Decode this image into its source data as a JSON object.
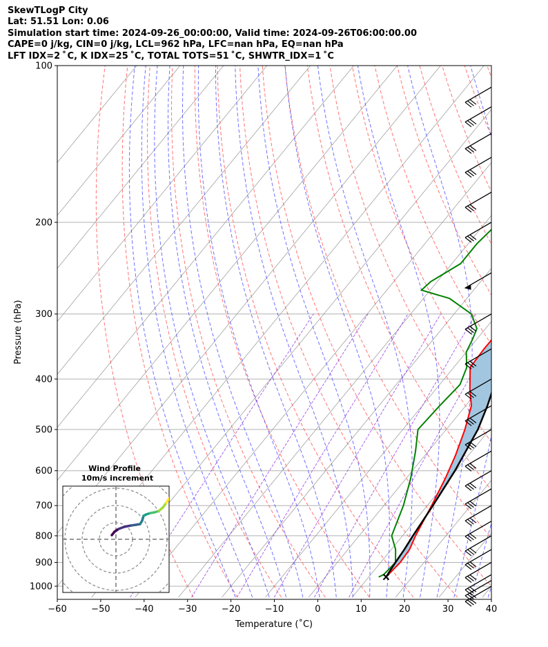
{
  "header": {
    "line1": "SkewTLogP City",
    "line2": "Lat: 51.51   Lon: 0.06",
    "line3": "Simulation start time: 2024-09-26_00:00:00, Valid time: 2024-09-26T06:00:00.00",
    "line4": "CAPE=0 j/kg, CIN=0 j/kg, LCL=962 hPa, LFC=nan hPa, EQ=nan hPa",
    "line5": "LFT IDX=2 ˚ C, K IDX=25 ˚C, TOTAL TOTS=51 ˚C, SHWTR_IDX=1 ˚C"
  },
  "inset": {
    "title_line1": "Wind Profile",
    "title_line2": "10m/s increment"
  },
  "chart_data": {
    "type": "line",
    "subtype": "skew-t log-p",
    "xlabel": "Temperature (˚C)",
    "ylabel": "Pressure (hPa)",
    "xlim": [
      -60,
      40
    ],
    "ylim": [
      1050,
      100
    ],
    "y_scale": "log",
    "grid": true,
    "x_ticks": [
      "−60",
      "−50",
      "−40",
      "−30",
      "−20",
      "−10",
      "0",
      "10",
      "20",
      "30",
      "40"
    ],
    "y_ticks": [
      "100",
      "200",
      "300",
      "400",
      "500",
      "600",
      "700",
      "800",
      "900",
      "1000"
    ],
    "series": [
      {
        "role": "temperature",
        "color": "#ff0000",
        "points": [
          [
            14,
            960
          ],
          [
            14.5,
            900
          ],
          [
            14.2,
            850
          ],
          [
            13,
            800
          ],
          [
            11,
            700
          ],
          [
            9,
            620
          ],
          [
            7,
            560
          ],
          [
            4.3,
            500
          ],
          [
            1.3,
            450
          ],
          [
            -2,
            420
          ],
          [
            -6.2,
            380
          ],
          [
            -6.5,
            350
          ],
          [
            -6.4,
            310
          ],
          [
            -5,
            290
          ],
          [
            -3,
            270
          ],
          [
            -0.5,
            250
          ],
          [
            1.5,
            230
          ],
          [
            3.5,
            210
          ],
          [
            5.5,
            190
          ],
          [
            8,
            175
          ],
          [
            9.5,
            160
          ],
          [
            12,
            150
          ],
          [
            15.5,
            130
          ],
          [
            19,
            110
          ],
          [
            21,
            100
          ]
        ]
      },
      {
        "role": "dewpoint",
        "color": "#008000",
        "points": [
          [
            12.3,
            960
          ],
          [
            13,
            950
          ],
          [
            13.4,
            900
          ],
          [
            11,
            850
          ],
          [
            7.5,
            800
          ],
          [
            4.5,
            700
          ],
          [
            1,
            620
          ],
          [
            -3,
            550
          ],
          [
            -6.5,
            500
          ],
          [
            -6,
            450
          ],
          [
            -5.3,
            410
          ],
          [
            -7,
            380
          ],
          [
            -10,
            355
          ],
          [
            -11,
            335
          ],
          [
            -12,
            320
          ],
          [
            -16,
            300
          ],
          [
            -24,
            280
          ],
          [
            -32,
            270
          ],
          [
            -31.5,
            260
          ],
          [
            -28,
            240
          ],
          [
            -28,
            220
          ],
          [
            -27,
            200
          ],
          [
            -25.5,
            180
          ],
          [
            -24,
            165
          ],
          [
            -19,
            145
          ],
          [
            -13,
            120
          ],
          [
            -7,
            100
          ]
        ]
      },
      {
        "role": "parcel",
        "color": "#000000",
        "points": [
          [
            14,
            960
          ],
          [
            13.4,
            900
          ],
          [
            13,
            850
          ],
          [
            12.4,
            800
          ],
          [
            11.3,
            700
          ],
          [
            9.8,
            600
          ],
          [
            7.3,
            500
          ],
          [
            5,
            450
          ],
          [
            2,
            400
          ],
          [
            0,
            370
          ],
          [
            -2,
            350
          ],
          [
            -5,
            320
          ],
          [
            -8,
            300
          ],
          [
            -12,
            275
          ],
          [
            -17,
            250
          ],
          [
            -22,
            225
          ],
          [
            -28,
            200
          ],
          [
            -34,
            175
          ],
          [
            -40,
            150
          ],
          [
            -46.5,
            125
          ],
          [
            -49.9,
            100
          ]
        ]
      }
    ],
    "wind_barbs": [
      {
        "pressure": 1000,
        "symbol": "barb"
      },
      {
        "pressure": 975,
        "symbol": "barb"
      },
      {
        "pressure": 950,
        "symbol": "barb"
      },
      {
        "pressure": 900,
        "symbol": "barb"
      },
      {
        "pressure": 850,
        "symbol": "barb"
      },
      {
        "pressure": 800,
        "symbol": "barb"
      },
      {
        "pressure": 750,
        "symbol": "barb"
      },
      {
        "pressure": 700,
        "symbol": "barb"
      },
      {
        "pressure": 650,
        "symbol": "barb"
      },
      {
        "pressure": 600,
        "symbol": "barb"
      },
      {
        "pressure": 550,
        "symbol": "barb"
      },
      {
        "pressure": 500,
        "symbol": "barb"
      },
      {
        "pressure": 450,
        "symbol": "barb"
      },
      {
        "pressure": 400,
        "symbol": "barb"
      },
      {
        "pressure": 350,
        "symbol": "barb"
      },
      {
        "pressure": 300,
        "symbol": "barb"
      },
      {
        "pressure": 250,
        "symbol": "pennant"
      },
      {
        "pressure": 200,
        "symbol": "barb"
      },
      {
        "pressure": 175,
        "symbol": "barb"
      },
      {
        "pressure": 150,
        "symbol": "barb"
      },
      {
        "pressure": 135,
        "symbol": "barb"
      },
      {
        "pressure": 120,
        "symbol": "barb"
      },
      {
        "pressure": 110,
        "symbol": "barb"
      }
    ],
    "inset_hodograph": {
      "rings": 4,
      "colormap": "viridis"
    },
    "colors": {
      "dry_adiabats": "#ff5050",
      "moist_adiabats": "#4040ff",
      "mixing_ratio": "#8a2be2",
      "isotherms": "#a0a0a0",
      "cape_fill": "#a2c6e0"
    }
  }
}
